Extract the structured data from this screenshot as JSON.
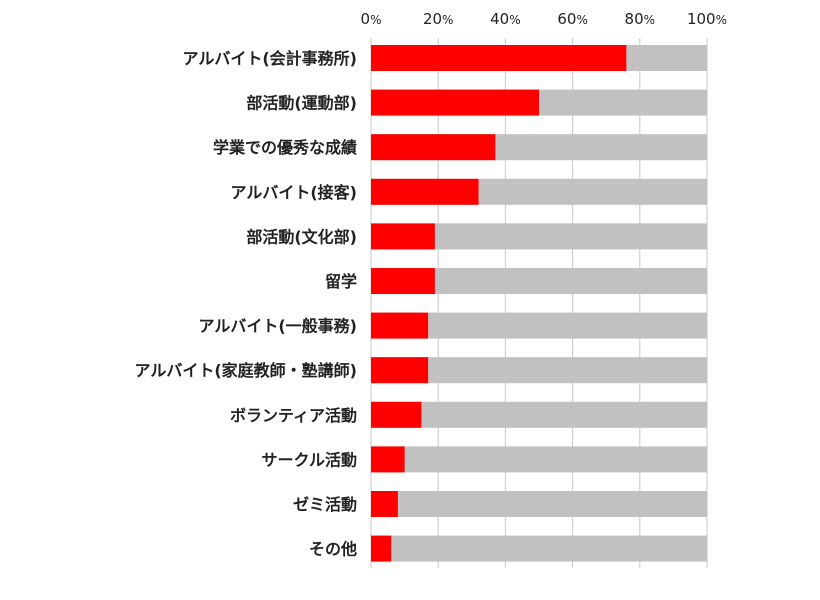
{
  "chart_data": {
    "type": "bar",
    "orientation": "horizontal",
    "stacked_remainder": true,
    "categories": [
      "アルバイト(会計事務所)",
      "部活動(運動部)",
      "学業での優秀な成績",
      "アルバイト(接客)",
      "部活動(文化部)",
      "留学",
      "アルバイト(一般事務)",
      "アルバイト(家庭教師・塾講師)",
      "ボランティア活動",
      "サークル活動",
      "ゼミ活動",
      "その他"
    ],
    "values": [
      76,
      50,
      37,
      32,
      19,
      19,
      17,
      17,
      15,
      10,
      8,
      6
    ],
    "xlim": [
      0,
      100
    ],
    "xticks": [
      0,
      20,
      40,
      60,
      80,
      100
    ],
    "tick_labels": [
      {
        "num": "0",
        "unit": "%"
      },
      {
        "num": "20",
        "unit": "%"
      },
      {
        "num": "40",
        "unit": "%"
      },
      {
        "num": "60",
        "unit": "%"
      },
      {
        "num": "80",
        "unit": "%"
      },
      {
        "num": "100",
        "unit": "%"
      }
    ],
    "xaxis_position": "top",
    "grid": "vertical",
    "legend": "none",
    "colors": {
      "value": "#ff0000",
      "remainder": "#c2c0c1",
      "grid": "#c8c8c8",
      "text": "#222222"
    }
  }
}
